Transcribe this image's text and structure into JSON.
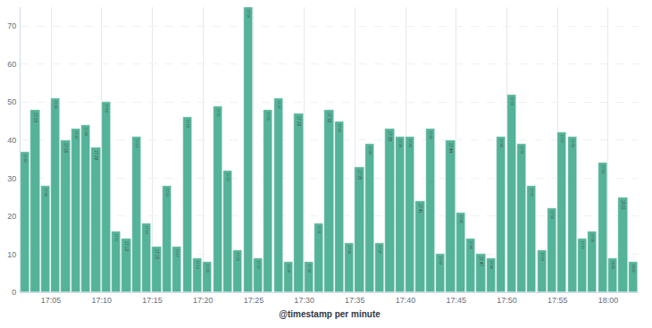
{
  "chart_data": {
    "type": "bar",
    "x_label": "@timestamp per minute",
    "categories": [
      "17:02",
      "17:03",
      "17:04",
      "17:05",
      "17:06",
      "17:07",
      "17:08",
      "17:09",
      "17:10",
      "17:11",
      "17:12",
      "17:13",
      "17:14",
      "17:15",
      "17:16",
      "17:17",
      "17:18",
      "17:19",
      "17:20",
      "17:21",
      "17:22",
      "17:23",
      "17:24",
      "17:25",
      "17:26",
      "17:27",
      "17:28",
      "17:29",
      "17:30",
      "17:31",
      "17:32",
      "17:33",
      "17:34",
      "17:35",
      "17:36",
      "17:37",
      "17:38",
      "17:39",
      "17:40",
      "17:41",
      "17:42",
      "17:43",
      "17:44",
      "17:45",
      "17:46",
      "17:47",
      "17:48",
      "17:49",
      "17:50",
      "17:51",
      "17:52",
      "17:53",
      "17:54",
      "17:55",
      "17:56",
      "17:57",
      "17:58",
      "17:59",
      "18:00",
      "18:01",
      "18:02"
    ],
    "values": [
      37,
      48,
      28,
      51,
      40,
      43,
      44,
      38,
      50,
      16,
      14,
      41,
      18,
      12,
      28,
      12,
      46,
      9,
      8,
      49,
      32,
      11,
      75,
      9,
      48,
      51,
      8,
      47,
      8,
      18,
      48,
      45,
      13,
      33,
      39,
      13,
      43,
      41,
      41,
      24,
      43,
      10,
      40,
      21,
      14,
      10,
      9,
      41,
      52,
      39,
      28,
      11,
      22,
      42,
      41,
      14,
      16,
      34,
      9,
      25,
      8
    ],
    "color": "#54b399",
    "xticks": [
      "17:05",
      "17:10",
      "17:15",
      "17:20",
      "17:25",
      "17:30",
      "17:35",
      "17:40",
      "17:45",
      "17:50",
      "17:55",
      "18:00"
    ],
    "ylim": [
      0,
      75
    ],
    "yticks": [
      0,
      10,
      20,
      30,
      40,
      50,
      60,
      70
    ],
    "grid": true
  }
}
